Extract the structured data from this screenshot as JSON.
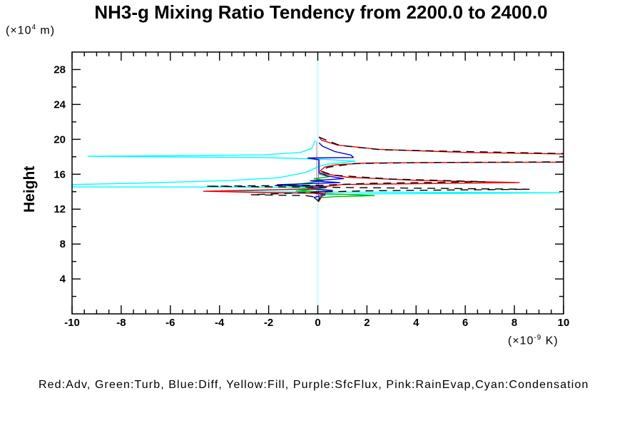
{
  "title": "NH3-g Mixing Ratio Tendency from 2200.0 to 2400.0",
  "y_axis_label": "Height",
  "y_axis_unit": {
    "prefix": "(×10",
    "exp": "4",
    "suffix": " m)"
  },
  "x_axis_unit": {
    "prefix": "(×10",
    "exp": "-9",
    "suffix": " K)"
  },
  "legend": {
    "text": "Red:Adv, Green:Turb, Blue:Diff, Yellow:Fill, Purple:SfcFlux, Pink:RainEvap,Cyan:Condensation",
    "items": [
      {
        "color_name": "Red",
        "hex": "#ee0000",
        "meaning": "Adv"
      },
      {
        "color_name": "Green",
        "hex": "#00bb00",
        "meaning": "Turb"
      },
      {
        "color_name": "Blue",
        "hex": "#0000dd",
        "meaning": "Diff"
      },
      {
        "color_name": "Yellow",
        "hex": "#ffff00",
        "meaning": "Fill"
      },
      {
        "color_name": "Purple",
        "hex": "#9933cc",
        "meaning": "SfcFlux"
      },
      {
        "color_name": "Pink",
        "hex": "#ffaaaa",
        "meaning": "RainEvap"
      },
      {
        "color_name": "Cyan",
        "hex": "#00ffff",
        "meaning": "Condensation"
      }
    ]
  },
  "chart_data": {
    "type": "line",
    "title": "NH3-g Mixing Ratio Tendency from 2200.0 to 2400.0",
    "xlabel": "Tendency (×10^-9 K)",
    "ylabel": "Height (×10^4 m)",
    "xlim": [
      -10,
      10
    ],
    "ylim": [
      0,
      30
    ],
    "x_major_ticks": [
      -10,
      -8,
      -6,
      -4,
      -2,
      0,
      2,
      4,
      6,
      8,
      10
    ],
    "x_minor_step": 0.5,
    "y_major_ticks": [
      4,
      8,
      12,
      16,
      20,
      24,
      28
    ],
    "y_minor_step": 2,
    "grid": false,
    "frame_color": "#000000",
    "series": [
      {
        "name": "Fill",
        "color": "#ffff00",
        "width": 1.2,
        "dash": null,
        "segments": [
          [
            [
              0.0,
              13.0
            ],
            [
              0.0,
              18.0
            ]
          ]
        ]
      },
      {
        "name": "SfcFlux",
        "color": "#9933cc",
        "width": 1.2,
        "dash": null,
        "segments": [
          [
            [
              0.03,
              13.0
            ],
            [
              0.03,
              17.5
            ]
          ]
        ]
      },
      {
        "name": "ZeroReferenceLine",
        "color": "#aaffff",
        "width": 1.5,
        "dash": null,
        "segments": [
          [
            [
              0.0,
              0.0
            ],
            [
              0.0,
              30.0
            ]
          ]
        ]
      },
      {
        "name": "RainEvap",
        "color": "#ffaaaa",
        "width": 1.5,
        "dash": null,
        "segments": [
          [
            [
              -0.05,
              13.25
            ],
            [
              -0.05,
              19.8
            ]
          ]
        ]
      },
      {
        "name": "Condensation",
        "color": "#00ffff",
        "width": 1.4,
        "dash": null,
        "segments": [
          [
            [
              -0.1,
              19.9
            ],
            [
              -0.25,
              18.95
            ],
            [
              -0.7,
              18.5
            ],
            [
              -2.2,
              18.22
            ],
            [
              -9.35,
              18.06
            ],
            [
              -2.2,
              17.92
            ],
            [
              -0.5,
              17.78
            ],
            [
              0.4,
              17.68
            ],
            [
              1.52,
              17.5
            ],
            [
              0.35,
              17.12
            ],
            [
              0.05,
              16.9
            ],
            [
              -0.5,
              16.2
            ],
            [
              -1.6,
              15.6
            ],
            [
              -3.6,
              15.28
            ],
            [
              -7.0,
              15.0
            ],
            [
              -10,
              14.82
            ],
            [
              -10,
              14.55
            ],
            [
              -5.0,
              14.53
            ],
            [
              -0.7,
              14.48
            ],
            [
              -0.25,
              14.38
            ],
            [
              -3.7,
              14.0
            ],
            [
              0.6,
              13.95
            ],
            [
              5.0,
              13.92
            ],
            [
              9.85,
              13.87
            ],
            [
              2.0,
              13.75
            ],
            [
              0.35,
              13.66
            ],
            [
              0.1,
              13.35
            ],
            [
              0.02,
              12.8
            ]
          ]
        ]
      },
      {
        "name": "Turb",
        "color": "#00bb00",
        "width": 1.4,
        "dash": null,
        "segments": [
          [
            [
              0.05,
              16.05
            ],
            [
              0.45,
              15.7
            ],
            [
              -0.15,
              15.5
            ],
            [
              0.25,
              15.3
            ],
            [
              -0.4,
              15.0
            ],
            [
              -1.4,
              14.7
            ],
            [
              -0.35,
              14.55
            ],
            [
              0.3,
              14.42
            ],
            [
              -0.88,
              14.08
            ],
            [
              0.3,
              14.0
            ],
            [
              -0.5,
              13.85
            ],
            [
              0.95,
              13.72
            ],
            [
              2.3,
              13.55
            ],
            [
              0.6,
              13.42
            ],
            [
              0.05,
              13.3
            ],
            [
              0.0,
              13.0
            ]
          ]
        ]
      },
      {
        "name": "Diff",
        "color": "#0000dd",
        "width": 1.4,
        "dash": null,
        "segments": [
          [
            [
              0.05,
              19.6
            ],
            [
              0.2,
              19.2
            ],
            [
              0.7,
              18.6
            ],
            [
              1.35,
              18.2
            ],
            [
              1.45,
              17.92
            ],
            [
              -0.4,
              17.86
            ],
            [
              0.05,
              17.65
            ],
            [
              0.05,
              16.2
            ],
            [
              0.4,
              15.8
            ],
            [
              1.05,
              15.5
            ],
            [
              -0.3,
              15.25
            ],
            [
              0.9,
              15.05
            ],
            [
              -1.65,
              14.8
            ],
            [
              0.4,
              14.6
            ],
            [
              -0.4,
              14.35
            ],
            [
              0.6,
              14.15
            ],
            [
              -0.3,
              13.9
            ],
            [
              0.3,
              13.65
            ],
            [
              -0.15,
              13.35
            ],
            [
              0.05,
              12.85
            ]
          ]
        ]
      },
      {
        "name": "Adv",
        "color": "#ee0000",
        "width": 1.4,
        "dash": null,
        "segments": [
          [
            [
              0.05,
              20.3
            ],
            [
              0.15,
              19.9
            ],
            [
              0.8,
              19.35
            ],
            [
              2.5,
              18.85
            ],
            [
              6.0,
              18.5
            ],
            [
              10,
              18.33
            ]
          ],
          [
            [
              10,
              17.38
            ],
            [
              5.0,
              17.35
            ],
            [
              2.0,
              17.28
            ],
            [
              0.8,
              17.1
            ],
            [
              0.3,
              16.85
            ],
            [
              0.1,
              16.4
            ],
            [
              0.3,
              16.05
            ],
            [
              1.2,
              15.65
            ],
            [
              4.0,
              15.3
            ],
            [
              8.2,
              15.05
            ],
            [
              4.0,
              14.92
            ],
            [
              1.0,
              14.82
            ],
            [
              0.2,
              14.55
            ],
            [
              -0.4,
              14.3
            ],
            [
              -4.65,
              14.05
            ],
            [
              -2.0,
              13.88
            ],
            [
              0.3,
              13.82
            ],
            [
              0.15,
              13.45
            ],
            [
              0.05,
              12.9
            ]
          ]
        ]
      },
      {
        "name": "UnlabeledBlackDashed",
        "color": "#000000",
        "width": 1.4,
        "dash": "11 8",
        "segments": [
          [
            [
              0.05,
              20.25
            ],
            [
              0.9,
              19.3
            ],
            [
              2.6,
              18.8
            ],
            [
              10,
              18.37
            ]
          ],
          [
            [
              10,
              17.42
            ],
            [
              4.0,
              17.33
            ],
            [
              1.5,
              17.22
            ],
            [
              0.4,
              16.8
            ],
            [
              0.15,
              16.35
            ],
            [
              0.6,
              15.9
            ],
            [
              3.0,
              15.45
            ],
            [
              6.8,
              15.15
            ],
            [
              2.0,
              14.95
            ],
            [
              0.2,
              14.75
            ],
            [
              -4.55,
              14.62
            ],
            [
              0.5,
              14.5
            ],
            [
              4.0,
              14.4
            ],
            [
              8.6,
              14.28
            ],
            [
              2.0,
              14.1
            ],
            [
              0.3,
              13.98
            ],
            [
              -2.7,
              13.65
            ],
            [
              -0.5,
              13.55
            ],
            [
              0.1,
              13.3
            ],
            [
              0.02,
              12.95
            ]
          ]
        ]
      }
    ]
  }
}
